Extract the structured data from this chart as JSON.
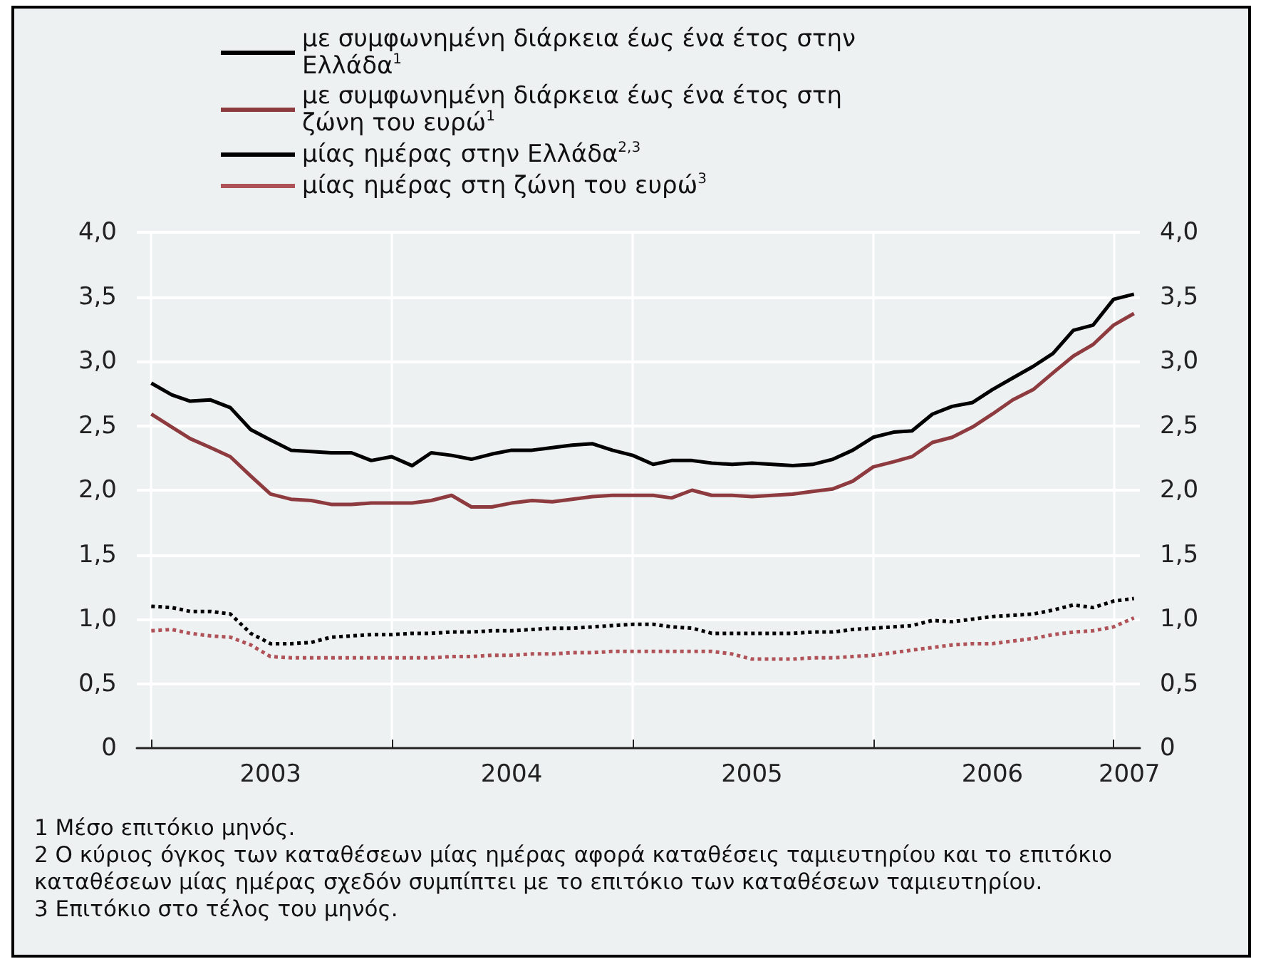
{
  "chart_data": {
    "type": "line",
    "legend": "top left",
    "grid": true,
    "marker": "none",
    "x": [
      "2003-01",
      "2003-02",
      "2003-03",
      "2003-04",
      "2003-05",
      "2003-06",
      "2003-07",
      "2003-08",
      "2003-09",
      "2003-10",
      "2003-11",
      "2003-12",
      "2004-01",
      "2004-02",
      "2004-03",
      "2004-04",
      "2004-05",
      "2004-06",
      "2004-07",
      "2004-08",
      "2004-09",
      "2004-10",
      "2004-11",
      "2004-12",
      "2005-01",
      "2005-02",
      "2005-03",
      "2005-04",
      "2005-05",
      "2005-06",
      "2005-07",
      "2005-08",
      "2005-09",
      "2005-10",
      "2005-11",
      "2005-12",
      "2006-01",
      "2006-02",
      "2006-03",
      "2006-04",
      "2006-05",
      "2006-06",
      "2006-07",
      "2006-08",
      "2006-09",
      "2006-10",
      "2006-11",
      "2006-12",
      "2007-01",
      "2007-02"
    ],
    "xlim": [
      "2002-12-10",
      "2007-02-10"
    ],
    "xticks": [
      {
        "value": "2003-01-01",
        "label": null
      },
      {
        "value": "2004-01-01",
        "label": null
      },
      {
        "value": "2005-01-01",
        "label": null
      },
      {
        "value": "2006-01-01",
        "label": null
      },
      {
        "value": "2007-01-01",
        "label": null
      },
      {
        "value": "2003-07-01",
        "label": "2003"
      },
      {
        "value": "2004-07-01",
        "label": "2004"
      },
      {
        "value": "2005-07-01",
        "label": "2005"
      },
      {
        "value": "2006-07-01",
        "label": "2006"
      },
      {
        "value": "2007-01-25",
        "label": "2007"
      }
    ],
    "ylim": [
      0,
      4
    ],
    "yticks": [
      {
        "value": 0,
        "label": "0"
      },
      {
        "value": 0.5,
        "label": "0,5"
      },
      {
        "value": 1,
        "label": "1,0"
      },
      {
        "value": 1.5,
        "label": "1,5"
      },
      {
        "value": 2,
        "label": "2,0"
      },
      {
        "value": 2.5,
        "label": "2,5"
      },
      {
        "value": 3,
        "label": "3,0"
      },
      {
        "value": 3.5,
        "label": "3,5"
      },
      {
        "value": 4,
        "label": "4,0"
      }
    ],
    "y2lim": [
      0,
      4
    ],
    "y2ticks": [
      {
        "value": 0,
        "label": "0"
      },
      {
        "value": 0.5,
        "label": "0,5"
      },
      {
        "value": 1,
        "label": "1,0"
      },
      {
        "value": 1.5,
        "label": "1,5"
      },
      {
        "value": 2,
        "label": "2,0"
      },
      {
        "value": 2.5,
        "label": "2,5"
      },
      {
        "value": 3,
        "label": "3,0"
      },
      {
        "value": 3.5,
        "label": "3,5"
      },
      {
        "value": 4,
        "label": "4,0"
      }
    ],
    "series": [
      {
        "name": "με συμφωνημένη διάρκεια έως ένα έτος στην Ελλάδα$^{1}$",
        "color": "#000000",
        "line_style": "solid",
        "values": [
          2.83,
          2.74,
          2.69,
          2.7,
          2.64,
          2.47,
          2.39,
          2.31,
          2.3,
          2.29,
          2.29,
          2.23,
          2.26,
          2.19,
          2.29,
          2.27,
          2.24,
          2.28,
          2.31,
          2.31,
          2.33,
          2.35,
          2.36,
          2.31,
          2.27,
          2.2,
          2.23,
          2.23,
          2.21,
          2.2,
          2.21,
          2.2,
          2.19,
          2.2,
          2.24,
          2.31,
          2.41,
          2.45,
          2.46,
          2.59,
          2.65,
          2.68,
          2.78,
          2.87,
          2.96,
          3.06,
          3.24,
          3.28,
          3.48,
          3.52
        ]
      },
      {
        "name": "με συμφωνημένη διάρκεια έως ένα έτος στη ζώνη του ευρώ$^{1}$",
        "color": "#8e3b40",
        "line_style": "solid",
        "values": [
          2.59,
          2.49,
          2.4,
          2.33,
          2.26,
          2.11,
          1.97,
          1.93,
          1.92,
          1.89,
          1.89,
          1.9,
          1.9,
          1.9,
          1.92,
          1.96,
          1.87,
          1.87,
          1.9,
          1.92,
          1.91,
          1.93,
          1.95,
          1.96,
          1.96,
          1.96,
          1.94,
          2.0,
          1.96,
          1.96,
          1.95,
          1.96,
          1.97,
          1.99,
          2.01,
          2.07,
          2.18,
          2.22,
          2.26,
          2.37,
          2.41,
          2.49,
          2.59,
          2.7,
          2.78,
          2.91,
          3.04,
          3.13,
          3.28,
          3.37
        ]
      },
      {
        "name": "μίας ημέρας στην Ελλάδα$^{2,3}$",
        "color": "#000000",
        "line_style": "dotted",
        "values": [
          1.1,
          1.09,
          1.06,
          1.06,
          1.04,
          0.89,
          0.81,
          0.81,
          0.82,
          0.86,
          0.87,
          0.88,
          0.88,
          0.89,
          0.89,
          0.9,
          0.9,
          0.91,
          0.91,
          0.92,
          0.93,
          0.93,
          0.94,
          0.95,
          0.96,
          0.96,
          0.94,
          0.93,
          0.89,
          0.89,
          0.89,
          0.89,
          0.89,
          0.9,
          0.9,
          0.92,
          0.93,
          0.94,
          0.95,
          0.99,
          0.98,
          1.0,
          1.02,
          1.03,
          1.04,
          1.07,
          1.11,
          1.09,
          1.14,
          1.16
        ]
      },
      {
        "name": "μίας ημέρας στη ζώνη του ευρώ$^{3}$",
        "color": "#b05358",
        "line_style": "dotted",
        "values": [
          0.91,
          0.92,
          0.89,
          0.87,
          0.86,
          0.8,
          0.71,
          0.7,
          0.7,
          0.7,
          0.7,
          0.7,
          0.7,
          0.7,
          0.7,
          0.71,
          0.71,
          0.72,
          0.72,
          0.73,
          0.73,
          0.74,
          0.74,
          0.75,
          0.75,
          0.75,
          0.75,
          0.75,
          0.75,
          0.73,
          0.69,
          0.69,
          0.69,
          0.7,
          0.7,
          0.71,
          0.72,
          0.74,
          0.76,
          0.78,
          0.8,
          0.81,
          0.81,
          0.83,
          0.85,
          0.88,
          0.9,
          0.91,
          0.94,
          1.01
        ]
      }
    ],
    "annotations": [
      "1 Μέσο επιτόκιο μηνός.",
      "2 Ο κύριος όγκος των καταθέσεων μίας ημέρας αφορά καταθέσεις ταμιευτηρίου και το επιτόκιο καταθέσεων μίας ημέρας σχεδόν συμπίπτει με το επιτόκιο των καταθέσεων ταμιευτηρίου.",
      "3 Επιτόκιο στο τέλος του μηνός."
    ]
  }
}
